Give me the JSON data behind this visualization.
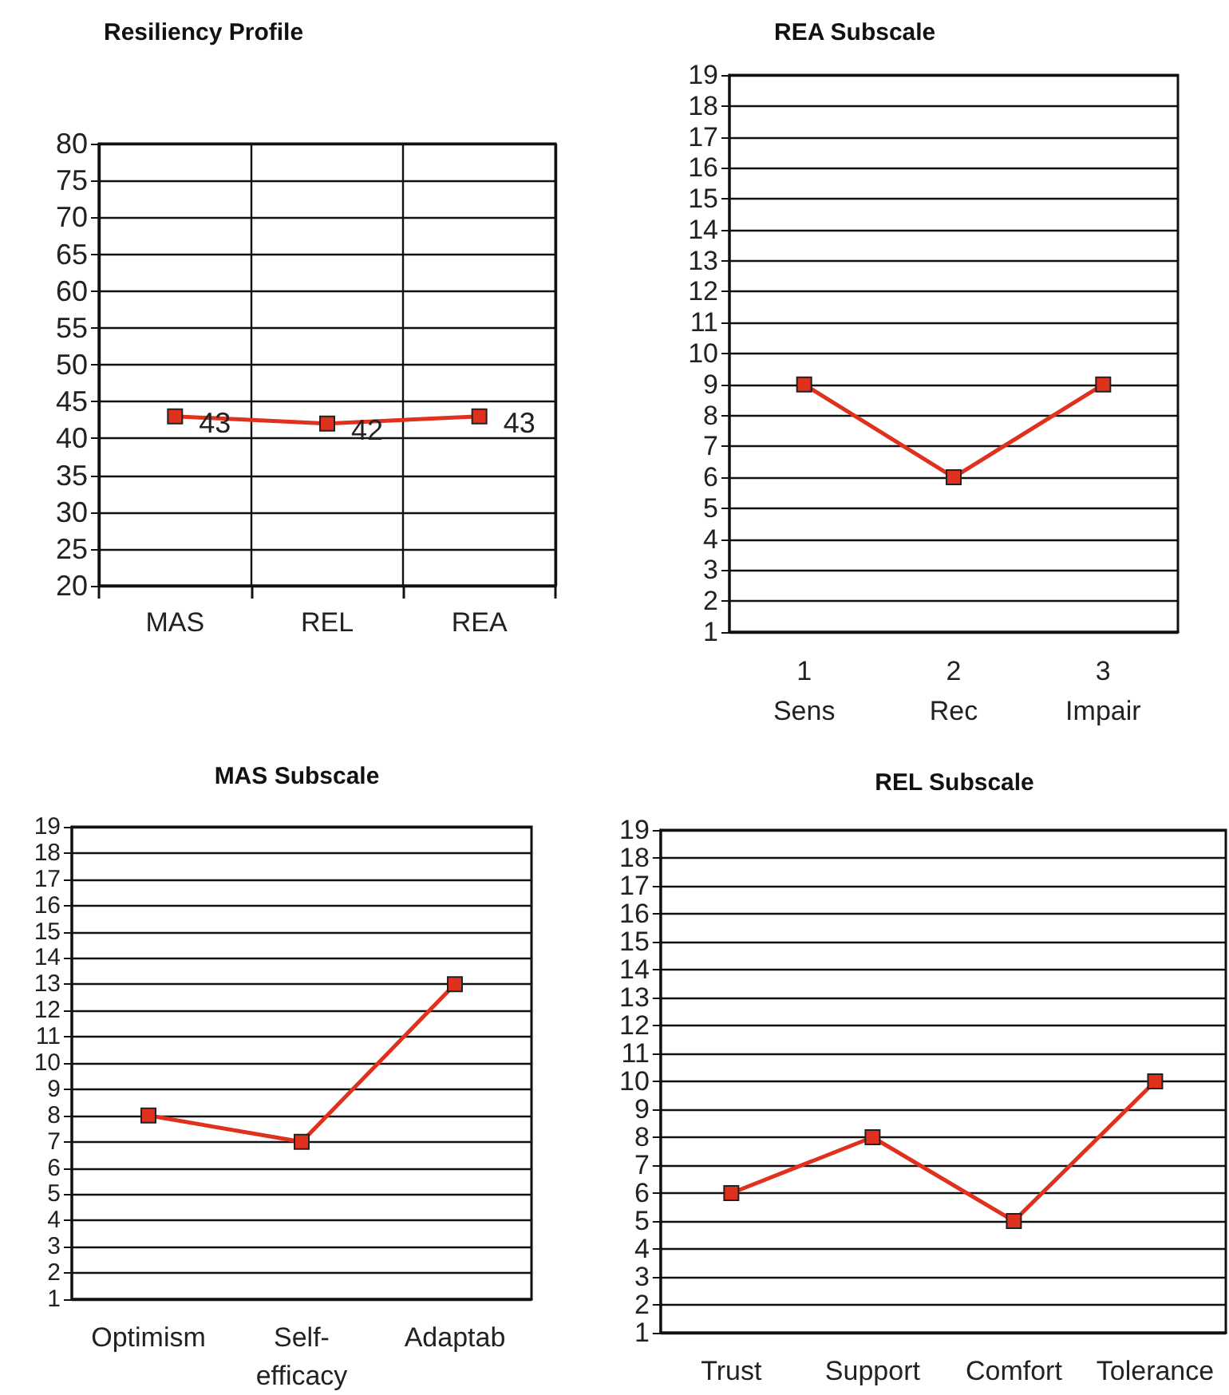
{
  "chart_data": [
    {
      "type": "line",
      "title": "Resiliency Profile",
      "categories": [
        "MAS",
        "REL",
        "REA"
      ],
      "series": [
        {
          "color": "#e0301e",
          "values": [
            43,
            42,
            43
          ]
        }
      ],
      "ylim": [
        20,
        80
      ],
      "yticks": [
        20,
        25,
        30,
        35,
        40,
        45,
        50,
        55,
        60,
        65,
        70,
        75,
        80
      ],
      "grid": true,
      "data_labels": true,
      "marker": "square",
      "line_style": "solid"
    },
    {
      "type": "line",
      "title": "REA Subscale",
      "categories": [
        "1\nSens",
        "2\nRec",
        "3\nImpair"
      ],
      "series": [
        {
          "color": "#e0301e",
          "values": [
            9,
            6,
            9
          ]
        }
      ],
      "ylim": [
        1,
        19
      ],
      "yticks": [
        1,
        2,
        3,
        4,
        5,
        6,
        7,
        8,
        9,
        10,
        11,
        12,
        13,
        14,
        15,
        16,
        17,
        18,
        19
      ],
      "grid": "y",
      "marker": "square",
      "line_style": "solid"
    },
    {
      "type": "line",
      "title": "MAS Subscale",
      "categories": [
        "Optimism",
        "Self-\nefficacy",
        "Adaptab"
      ],
      "series": [
        {
          "color": "#e0301e",
          "values": [
            8,
            7,
            13
          ]
        }
      ],
      "ylim": [
        1,
        19
      ],
      "yticks": [
        1,
        2,
        3,
        4,
        5,
        6,
        7,
        8,
        9,
        10,
        11,
        12,
        13,
        14,
        15,
        16,
        17,
        18,
        19
      ],
      "grid": "y",
      "marker": "square",
      "line_style": "solid"
    },
    {
      "type": "line",
      "title": "REL Subscale",
      "categories": [
        "Trust",
        "Support",
        "Comfort",
        "Tolerance"
      ],
      "series": [
        {
          "color": "#e0301e",
          "values": [
            6,
            8,
            5,
            10
          ]
        }
      ],
      "ylim": [
        1,
        19
      ],
      "yticks": [
        1,
        2,
        3,
        4,
        5,
        6,
        7,
        8,
        9,
        10,
        11,
        12,
        13,
        14,
        15,
        16,
        17,
        18,
        19
      ],
      "grid": "y",
      "marker": "square",
      "line_style": "solid"
    }
  ]
}
